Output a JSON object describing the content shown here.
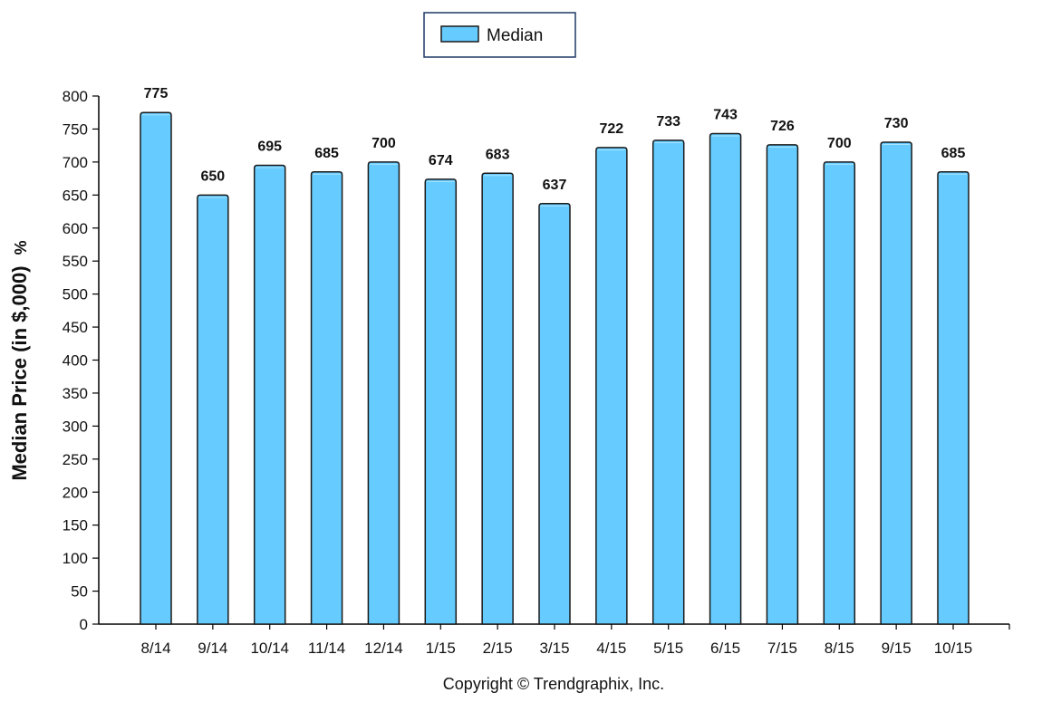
{
  "colors": {
    "bar_fill": "#66ccff",
    "bar_stroke": "#1a1a1a",
    "axis": "#000000",
    "background": "#ffffff"
  },
  "legend": {
    "label": "Median"
  },
  "copyright": "Copyright © Trendgraphix, Inc.",
  "chart_data": {
    "type": "bar",
    "title": "",
    "xlabel": "",
    "ylabel": "Median Price (in $,000)",
    "ylabel_suffix": "%",
    "ylim": [
      0,
      800
    ],
    "ytick_step": 50,
    "grid": false,
    "legend_position": "top-center",
    "categories": [
      "8/14",
      "9/14",
      "10/14",
      "11/14",
      "12/14",
      "1/15",
      "2/15",
      "3/15",
      "4/15",
      "5/15",
      "6/15",
      "7/15",
      "8/15",
      "9/15",
      "10/15"
    ],
    "series": [
      {
        "name": "Median",
        "values": [
          775,
          650,
          695,
          685,
          700,
          674,
          683,
          637,
          722,
          733,
          743,
          726,
          700,
          730,
          685
        ]
      }
    ]
  }
}
